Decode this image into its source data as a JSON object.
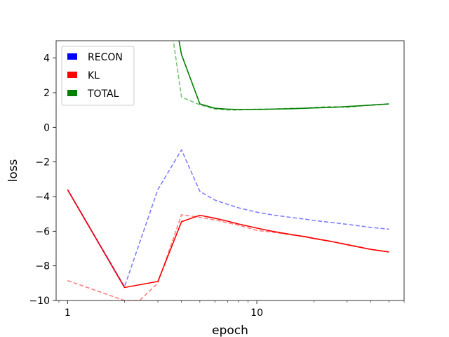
{
  "chart_data": {
    "type": "line",
    "title": "",
    "xlabel": "epoch",
    "ylabel": "loss",
    "xscale": "log",
    "xlim": [
      0.87,
      60
    ],
    "ylim": [
      -10,
      5
    ],
    "xticks": [
      1,
      10
    ],
    "xtick_labels": [
      "1",
      "10"
    ],
    "yticks": [
      -10,
      -8,
      -6,
      -4,
      -2,
      0,
      2,
      4
    ],
    "ytick_labels": [
      "−10",
      "−8",
      "−6",
      "−4",
      "−2",
      "0",
      "2",
      "4"
    ],
    "grid": false,
    "legend_position": "upper-left",
    "legend": [
      {
        "name": "RECON",
        "color": "#0000ff"
      },
      {
        "name": "KL",
        "color": "#ff0000"
      },
      {
        "name": "TOTAL",
        "color": "#008000"
      }
    ],
    "series": [
      {
        "name": "RECON",
        "style": "dashed",
        "color": "#0000ff",
        "alpha": 0.5,
        "x": [
          1,
          2,
          3,
          4,
          5,
          6,
          7,
          8,
          10,
          12,
          15,
          18,
          20,
          25,
          30,
          40,
          50
        ],
        "y": [
          -3.6,
          -9.2,
          -3.6,
          -1.3,
          -3.7,
          -4.2,
          -4.45,
          -4.65,
          -4.9,
          -5.05,
          -5.2,
          -5.3,
          -5.38,
          -5.5,
          -5.6,
          -5.78,
          -5.88
        ]
      },
      {
        "name": "RECON",
        "style": "solid",
        "color": "#0000ff",
        "alpha": 1.0,
        "x": [
          1,
          2
        ],
        "y": [
          -3.6,
          -9.25
        ]
      },
      {
        "name": "KL",
        "style": "dashed",
        "color": "#ff0000",
        "alpha": 0.5,
        "x": [
          1,
          2,
          2.4,
          3,
          4,
          5,
          6,
          8,
          10,
          12,
          15,
          18,
          20,
          25,
          30,
          40,
          50
        ],
        "y": [
          -8.85,
          -10.0,
          -10.0,
          -9.0,
          -5.05,
          -5.2,
          -5.35,
          -5.65,
          -5.95,
          -6.05,
          -6.2,
          -6.3,
          -6.4,
          -6.6,
          -6.75,
          -7.05,
          -7.2
        ]
      },
      {
        "name": "KL",
        "style": "solid",
        "color": "#ff0000",
        "alpha": 1.0,
        "x": [
          1,
          2,
          3,
          4,
          5,
          6,
          7,
          8,
          10,
          12,
          15,
          18,
          20,
          25,
          30,
          40,
          50
        ],
        "y": [
          -3.6,
          -9.25,
          -8.9,
          -5.45,
          -5.08,
          -5.25,
          -5.42,
          -5.58,
          -5.82,
          -6.0,
          -6.18,
          -6.32,
          -6.42,
          -6.6,
          -6.78,
          -7.05,
          -7.2
        ]
      },
      {
        "name": "TOTAL",
        "style": "dashed",
        "color": "#008000",
        "alpha": 0.5,
        "x": [
          3.6,
          4,
          5,
          6,
          7,
          8,
          10,
          12,
          15,
          18,
          20,
          25,
          30,
          40,
          50
        ],
        "y": [
          5.2,
          1.75,
          1.3,
          1.05,
          1.0,
          1.0,
          1.05,
          1.05,
          1.1,
          1.1,
          1.15,
          1.2,
          1.15,
          1.3,
          1.35
        ]
      },
      {
        "name": "TOTAL",
        "style": "solid",
        "color": "#008000",
        "alpha": 1.0,
        "x": [
          3.85,
          4,
          5,
          6,
          7,
          8,
          10,
          12,
          15,
          18,
          20,
          25,
          30,
          40,
          50
        ],
        "y": [
          5.2,
          4.2,
          1.35,
          1.1,
          1.05,
          1.03,
          1.03,
          1.05,
          1.07,
          1.1,
          1.12,
          1.15,
          1.2,
          1.28,
          1.35
        ]
      }
    ]
  }
}
